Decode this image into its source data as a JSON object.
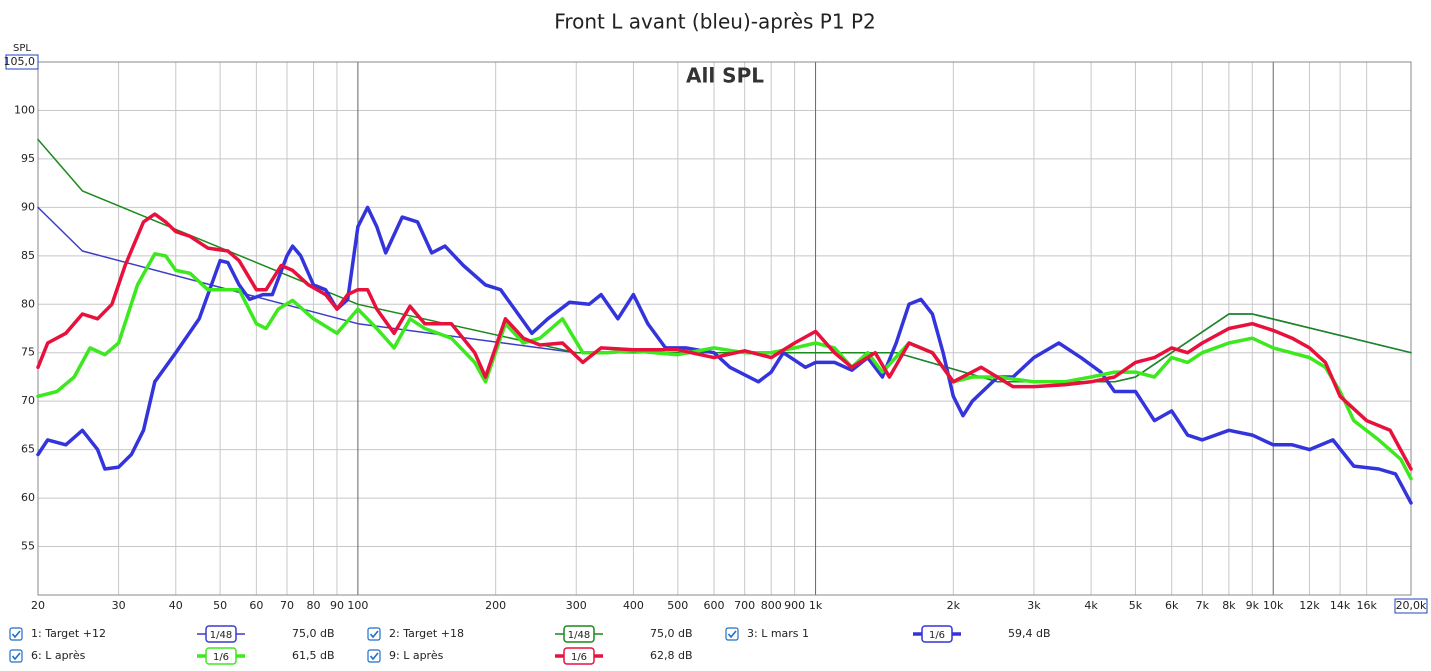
{
  "chart_data": {
    "type": "line",
    "title": "Front L avant (bleu)-après P1 P2",
    "annotation": "All SPL",
    "y_label": "SPL",
    "log_x": true,
    "grid": true,
    "xlim": [
      20,
      20000
    ],
    "ylim": [
      50,
      105
    ],
    "xticks": [
      20,
      30,
      40,
      50,
      60,
      70,
      80,
      90,
      100,
      200,
      300,
      400,
      500,
      600,
      700,
      800,
      900,
      {
        "value": 1000,
        "label": "1k"
      },
      {
        "value": 2000,
        "label": "2k"
      },
      {
        "value": 3000,
        "label": "3k"
      },
      {
        "value": 4000,
        "label": "4k"
      },
      {
        "value": 5000,
        "label": "5k"
      },
      {
        "value": 6000,
        "label": "6k"
      },
      {
        "value": 7000,
        "label": "7k"
      },
      {
        "value": 8000,
        "label": "8k"
      },
      {
        "value": 9000,
        "label": "9k"
      },
      {
        "value": 10000,
        "label": "10k"
      },
      {
        "value": 12000,
        "label": "12k"
      },
      {
        "value": 14000,
        "label": "14k"
      },
      {
        "value": 16000,
        "label": "16k"
      },
      {
        "value": 20000,
        "label": "20,0k"
      }
    ],
    "yticks": [
      55,
      60,
      65,
      70,
      75,
      80,
      85,
      90,
      95,
      100,
      {
        "value": 105,
        "label": "105,0"
      }
    ],
    "series": [
      {
        "name": "1: Target +12",
        "color": "#3c3cc8",
        "line_width": 1.5,
        "smoothing": "1/48",
        "level_label": "75,0 dB",
        "x": [
          20,
          25,
          100,
          300,
          1000,
          1500,
          2500,
          4500,
          5000,
          8000,
          9000,
          20000
        ],
        "values": [
          90,
          85.5,
          78,
          75,
          75,
          75,
          72,
          72,
          72.5,
          79,
          79,
          75
        ]
      },
      {
        "name": "2: Target +18",
        "color": "#1a8a1a",
        "line_width": 1.5,
        "smoothing": "1/48",
        "level_label": "75,0 dB",
        "x": [
          20,
          25,
          100,
          300,
          1000,
          1500,
          2500,
          4500,
          5000,
          8000,
          9000,
          20000
        ],
        "values": [
          97,
          91.7,
          80,
          75,
          75,
          75,
          72,
          72,
          72.5,
          79,
          79,
          75
        ]
      },
      {
        "name": "3: L mars 1",
        "color": "#3434dc",
        "line_width": 3.5,
        "smoothing": "1/6",
        "level_label": "59,4 dB",
        "x": [
          20,
          21,
          23,
          25,
          27,
          28,
          30,
          32,
          34,
          36,
          40,
          45,
          50,
          52,
          55,
          58,
          62,
          65,
          70,
          72,
          75,
          80,
          85,
          90,
          95,
          100,
          105,
          110,
          115,
          125,
          135,
          145,
          155,
          170,
          190,
          205,
          220,
          240,
          260,
          290,
          320,
          340,
          370,
          400,
          430,
          470,
          520,
          600,
          650,
          750,
          800,
          850,
          950,
          1000,
          1100,
          1200,
          1300,
          1400,
          1500,
          1600,
          1700,
          1800,
          1900,
          2000,
          2100,
          2200,
          2500,
          2700,
          3000,
          3400,
          3800,
          4200,
          4500,
          5000,
          5500,
          6000,
          6500,
          7000,
          8000,
          9000,
          10000,
          11000,
          12000,
          13500,
          15000,
          17000,
          18500,
          20000
        ],
        "values": [
          64.5,
          66,
          65.5,
          67,
          65,
          63,
          63.2,
          64.5,
          67,
          72,
          75,
          78.5,
          84.5,
          84.3,
          82,
          80.5,
          81,
          81,
          85,
          86,
          85,
          82,
          81.5,
          79.5,
          80.5,
          88,
          90,
          88,
          85.3,
          89,
          88.5,
          85.3,
          86,
          84,
          82,
          81.5,
          79.5,
          77,
          78.5,
          80.2,
          80,
          81,
          78.5,
          81,
          78,
          75.5,
          75.5,
          75,
          73.5,
          72,
          73,
          75,
          73.5,
          74,
          74,
          73.2,
          74.5,
          72.5,
          76,
          80,
          80.5,
          79,
          75,
          70.5,
          68.5,
          70,
          72.5,
          72.5,
          74.5,
          76,
          74.5,
          73,
          71,
          71,
          68,
          69,
          66.5,
          66,
          67,
          66.5,
          65.5,
          65.5,
          65,
          66,
          63.3,
          63,
          62.5,
          59.5
        ]
      },
      {
        "name": "6: L après",
        "color": "#3ce81e",
        "line_width": 3.5,
        "smoothing": "1/6",
        "level_label": "61,5 dB",
        "x": [
          20,
          22,
          24,
          26,
          28,
          30,
          33,
          36,
          38,
          40,
          43,
          47,
          50,
          55,
          60,
          63,
          67,
          72,
          80,
          90,
          100,
          110,
          120,
          130,
          140,
          160,
          180,
          190,
          210,
          230,
          250,
          280,
          310,
          350,
          400,
          500,
          600,
          700,
          800,
          900,
          1000,
          1100,
          1200,
          1300,
          1400,
          1600,
          1800,
          2000,
          2200,
          2500,
          3000,
          3500,
          4000,
          4500,
          5000,
          5500,
          6000,
          6500,
          7000,
          8000,
          9000,
          10000,
          12000,
          13000,
          14000,
          15000,
          17000,
          19000,
          20000
        ],
        "values": [
          70.5,
          71,
          72.5,
          75.5,
          74.8,
          76,
          82,
          85.2,
          85,
          83.5,
          83.2,
          81.5,
          81.5,
          81.5,
          78,
          77.5,
          79.5,
          80.4,
          78.5,
          77,
          79.5,
          77.5,
          75.5,
          78.5,
          77.5,
          76.5,
          74,
          72,
          78,
          76,
          76.5,
          78.5,
          75,
          75,
          75.2,
          74.8,
          75.5,
          75,
          75,
          75.5,
          76,
          75.5,
          73.5,
          75,
          73,
          76,
          75,
          72,
          72.5,
          72.5,
          72,
          72,
          72.5,
          73,
          73,
          72.5,
          74.5,
          74,
          75,
          76,
          76.5,
          75.5,
          74.5,
          73.5,
          71,
          68,
          66,
          64,
          62
        ]
      },
      {
        "name": "9: L après",
        "color": "#e8103c",
        "line_width": 3.5,
        "smoothing": "1/6",
        "level_label": "62,8 dB",
        "x": [
          20,
          21,
          23,
          25,
          27,
          29,
          31,
          34,
          36,
          38,
          40,
          43,
          47,
          52,
          55,
          60,
          63,
          68,
          72,
          78,
          85,
          90,
          95,
          100,
          105,
          110,
          120,
          130,
          140,
          160,
          180,
          190,
          210,
          230,
          250,
          280,
          310,
          340,
          400,
          500,
          600,
          700,
          800,
          900,
          1000,
          1100,
          1200,
          1350,
          1450,
          1600,
          1800,
          2000,
          2300,
          2700,
          3000,
          3500,
          4000,
          4500,
          5000,
          5500,
          6000,
          6500,
          7000,
          8000,
          9000,
          10000,
          11000,
          12000,
          13000,
          14000,
          16000,
          18000,
          20000
        ],
        "values": [
          73.5,
          76,
          77,
          79,
          78.5,
          80,
          84,
          88.5,
          89.3,
          88.5,
          87.5,
          87,
          85.8,
          85.5,
          84.5,
          81.5,
          81.5,
          84,
          83.5,
          82,
          81,
          79.5,
          81,
          81.5,
          81.5,
          79.5,
          77,
          79.8,
          78,
          78,
          75,
          72.5,
          78.5,
          76.5,
          75.8,
          76,
          74,
          75.5,
          75.3,
          75.3,
          74.5,
          75.2,
          74.5,
          76,
          77.2,
          75,
          73.5,
          75,
          72.5,
          76,
          75,
          72,
          73.5,
          71.5,
          71.5,
          71.7,
          72,
          72.5,
          74,
          74.5,
          75.5,
          75,
          76,
          77.5,
          78,
          77.3,
          76.5,
          75.5,
          74,
          70.5,
          68,
          67,
          63
        ]
      }
    ]
  }
}
